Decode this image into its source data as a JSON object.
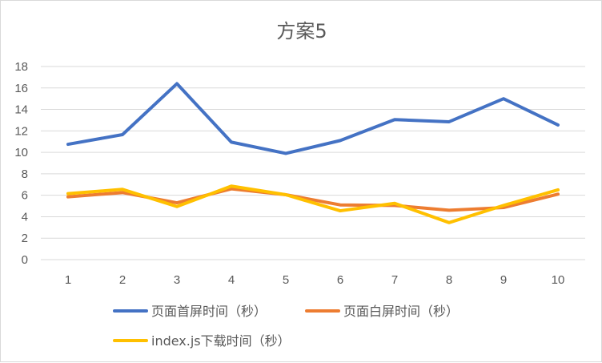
{
  "chart_data": {
    "type": "line",
    "title": "方案5",
    "xlabel": "",
    "ylabel": "",
    "categories": [
      "1",
      "2",
      "3",
      "4",
      "5",
      "6",
      "7",
      "8",
      "9",
      "10"
    ],
    "ylim": [
      0,
      18
    ],
    "yticks": [
      "0",
      "2",
      "4",
      "6",
      "8",
      "10",
      "12",
      "14",
      "16",
      "18"
    ],
    "grid": true,
    "legend_position": "bottom",
    "series": [
      {
        "name": "页面首屏时间（秒）",
        "color": "#4472C4",
        "values": [
          10.75,
          11.65,
          16.4,
          10.95,
          9.9,
          11.1,
          13.05,
          12.85,
          15.0,
          12.55
        ]
      },
      {
        "name": "页面白屏时间（秒）",
        "color": "#ED7D31",
        "values": [
          5.85,
          6.25,
          5.3,
          6.6,
          6.05,
          5.1,
          5.05,
          4.6,
          4.85,
          6.1
        ]
      },
      {
        "name": "index.js下载时间（秒）",
        "color": "#FFC000",
        "values": [
          6.15,
          6.55,
          4.95,
          6.85,
          6.05,
          4.55,
          5.25,
          3.45,
          5.05,
          6.5
        ]
      }
    ]
  }
}
